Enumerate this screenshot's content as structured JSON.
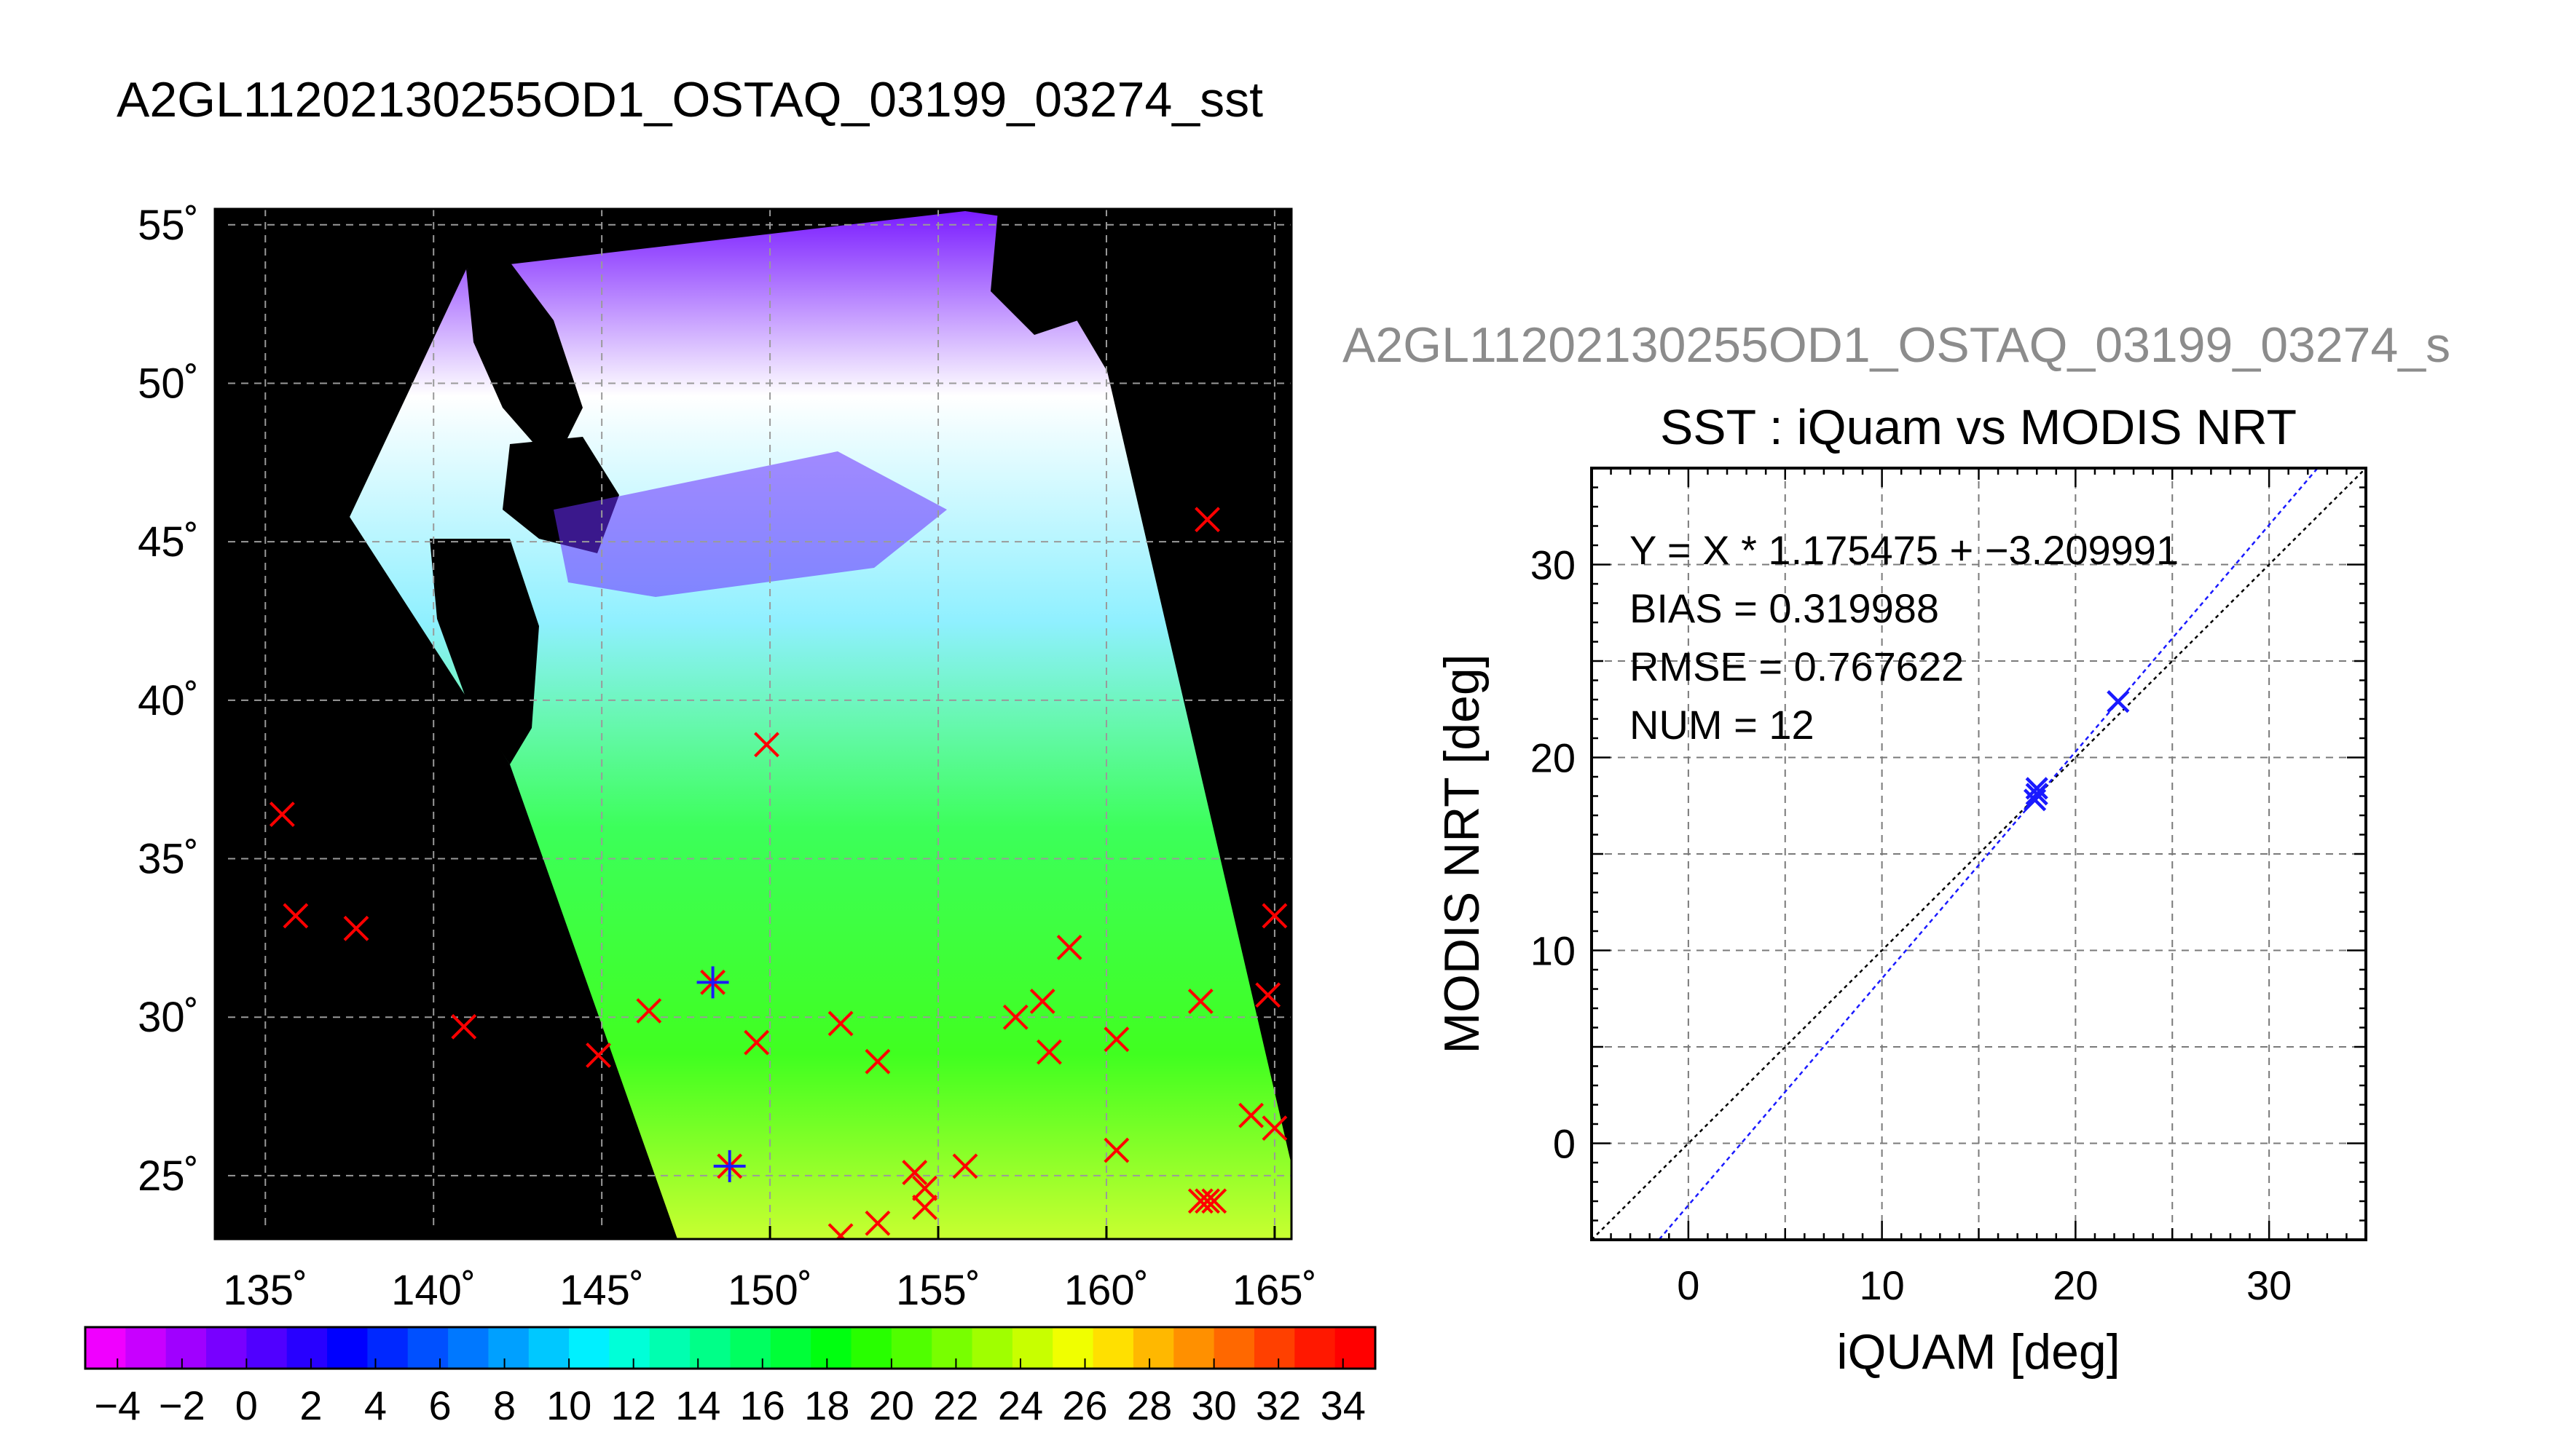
{
  "page_title": "A2GL11202130255OD1_OSTAQ_03199_03274_sst",
  "chart_data": [
    {
      "type": "map",
      "title": "",
      "lon_range": [
        133.5,
        165.5
      ],
      "lat_range": [
        23,
        55.5
      ],
      "lon_ticks": [
        135,
        140,
        145,
        150,
        155,
        160,
        165
      ],
      "lat_ticks": [
        25,
        30,
        35,
        40,
        45,
        50,
        55
      ],
      "lon_tick_labels": [
        "135˚",
        "140˚",
        "145˚",
        "150˚",
        "155˚",
        "160˚",
        "165˚"
      ],
      "lat_tick_labels": [
        "25˚",
        "30˚",
        "35˚",
        "40˚",
        "45˚",
        "50˚",
        "55˚"
      ],
      "grid": true,
      "red_markers": [
        [
          135.5,
          36.4
        ],
        [
          135.9,
          33.2
        ],
        [
          137.7,
          32.8
        ],
        [
          140.9,
          29.7
        ],
        [
          144.9,
          28.8
        ],
        [
          146.4,
          30.2
        ],
        [
          149.6,
          29.2
        ],
        [
          149.9,
          38.6
        ],
        [
          152.1,
          29.8
        ],
        [
          152.1,
          23.1
        ],
        [
          153.2,
          28.6
        ],
        [
          153.2,
          23.5
        ],
        [
          154.3,
          25.1
        ],
        [
          154.6,
          24.6
        ],
        [
          154.6,
          24.0
        ],
        [
          155.8,
          25.3
        ],
        [
          157.3,
          30.0
        ],
        [
          158.1,
          30.5
        ],
        [
          158.3,
          28.9
        ],
        [
          158.9,
          32.2
        ],
        [
          160.3,
          29.3
        ],
        [
          160.3,
          25.8
        ],
        [
          162.8,
          30.5
        ],
        [
          163.0,
          45.7
        ],
        [
          162.8,
          24.2
        ],
        [
          163.0,
          24.2
        ],
        [
          163.2,
          24.2
        ],
        [
          164.3,
          26.9
        ],
        [
          164.8,
          30.7
        ],
        [
          165.0,
          33.2
        ],
        [
          165.0,
          26.5
        ]
      ],
      "matched_markers": [
        [
          148.3,
          31.1
        ],
        [
          148.8,
          25.3
        ]
      ],
      "colorbar": {
        "min": -5,
        "max": 35,
        "tick_labels": [
          "−4",
          "−2",
          "0",
          "2",
          "4",
          "6",
          "8",
          "10",
          "12",
          "14",
          "16",
          "18",
          "20",
          "22",
          "24",
          "26",
          "28",
          "30",
          "32",
          "34"
        ],
        "colors": [
          "#f000ff",
          "#c800ff",
          "#a000ff",
          "#7800ff",
          "#5000ff",
          "#2800ff",
          "#0000ff",
          "#0028ff",
          "#0050ff",
          "#0078ff",
          "#00a0ff",
          "#00c8ff",
          "#00f0ff",
          "#00ffd8",
          "#00ffb0",
          "#00ff88",
          "#00ff60",
          "#00ff38",
          "#00ff10",
          "#28ff00",
          "#50ff00",
          "#78ff00",
          "#a0ff00",
          "#c8ff00",
          "#f0ff00",
          "#ffe000",
          "#ffb800",
          "#ff9000",
          "#ff6800",
          "#ff4000",
          "#ff1800",
          "#ff0000"
        ]
      }
    },
    {
      "type": "scatter",
      "header": "A2GL11202130255OD1_OSTAQ_03199_03274_s",
      "title": "SST : iQuam vs MODIS NRT",
      "xlabel": "iQUAM [deg]",
      "ylabel": "MODIS NRT [deg]",
      "xlim": [
        -5,
        35
      ],
      "ylim": [
        -5,
        35
      ],
      "xticks": [
        0,
        10,
        20,
        30
      ],
      "yticks": [
        0,
        10,
        20,
        30
      ],
      "grid": true,
      "points": [
        [
          17.9,
          17.8
        ],
        [
          18.0,
          18.1
        ],
        [
          18.0,
          18.4
        ],
        [
          22.2,
          22.9
        ]
      ],
      "fit": {
        "slope": 1.175475,
        "intercept": -3.209991
      },
      "annotations": [
        "Y = X * 1.175475 + −3.209991",
        "BIAS = 0.319988",
        "RMSE = 0.767622",
        "NUM = 12"
      ]
    }
  ]
}
